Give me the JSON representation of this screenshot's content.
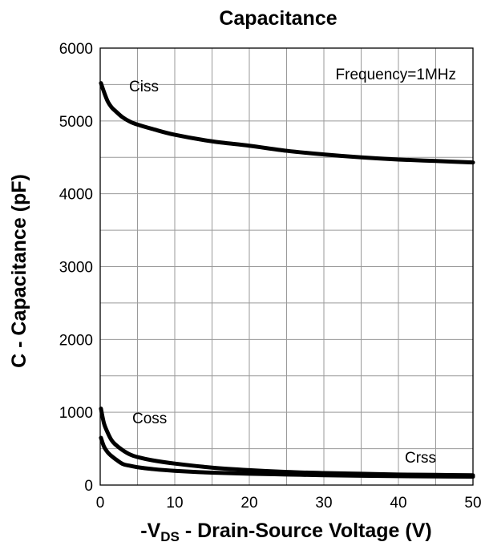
{
  "chart_data": {
    "type": "line",
    "title": "Capacitance",
    "xlabel": {
      "prefix": "-V",
      "subscript": "DS",
      "suffix": " - Drain-Source Voltage (V)"
    },
    "ylabel": "C - Capacitance (pF)",
    "xlim": [
      0,
      50
    ],
    "ylim": [
      0,
      6000
    ],
    "xticks": [
      0,
      10,
      20,
      30,
      40,
      50
    ],
    "xtick_labels": [
      "0",
      "10",
      "20",
      "30",
      "40",
      "50"
    ],
    "yticks": [
      0,
      1000,
      2000,
      3000,
      4000,
      5000,
      6000
    ],
    "ytick_labels": [
      "0",
      "1000",
      "2000",
      "3000",
      "4000",
      "5000",
      "6000"
    ],
    "grid": true,
    "annotation": "Frequency=1MHz",
    "line_color": "#000000",
    "series": [
      {
        "name": "Ciss",
        "x": [
          0.1,
          0.5,
          1,
          1.5,
          2,
          3,
          4,
          5,
          7,
          10,
          15,
          20,
          25,
          30,
          35,
          40,
          45,
          50
        ],
        "y": [
          5520,
          5400,
          5270,
          5190,
          5140,
          5050,
          4990,
          4950,
          4890,
          4810,
          4720,
          4660,
          4590,
          4540,
          4500,
          4470,
          4450,
          4430
        ]
      },
      {
        "name": "Coss",
        "x": [
          0.1,
          0.5,
          1,
          1.5,
          2,
          3,
          4,
          5,
          7,
          10,
          15,
          20,
          25,
          30,
          35,
          40,
          45,
          50
        ],
        "y": [
          1050,
          850,
          720,
          620,
          560,
          480,
          420,
          385,
          340,
          295,
          240,
          205,
          180,
          165,
          155,
          145,
          140,
          135
        ]
      },
      {
        "name": "Crss",
        "x": [
          0.1,
          0.5,
          1,
          1.5,
          2,
          3,
          4,
          5,
          7,
          10,
          15,
          20,
          25,
          30,
          35,
          40,
          45,
          50
        ],
        "y": [
          650,
          530,
          450,
          400,
          360,
          290,
          265,
          245,
          220,
          195,
          170,
          155,
          145,
          135,
          128,
          122,
          118,
          115
        ]
      }
    ]
  }
}
